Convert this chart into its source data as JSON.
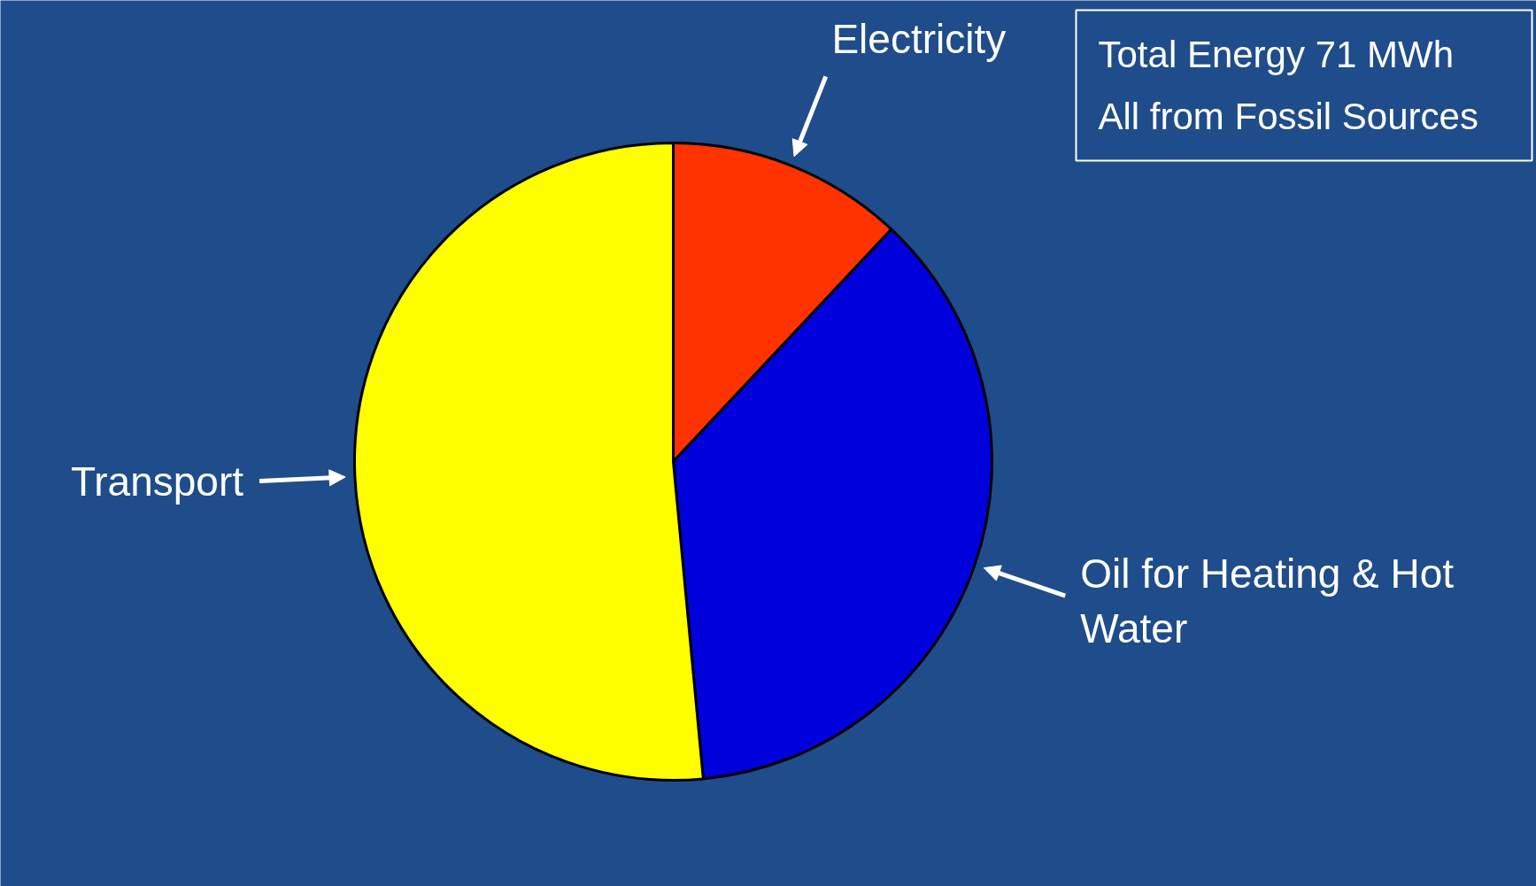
{
  "chart_data": {
    "type": "pie",
    "categories": [
      "Electricity",
      "Oil for Heating & Hot Water",
      "Transport"
    ],
    "values": [
      12,
      36.5,
      51.5
    ],
    "colors": [
      "#ff3300",
      "#0000dd",
      "#ffff00"
    ],
    "annotations": [
      "Total Energy 71 MWh",
      "All from Fossil Sources"
    ]
  }
}
